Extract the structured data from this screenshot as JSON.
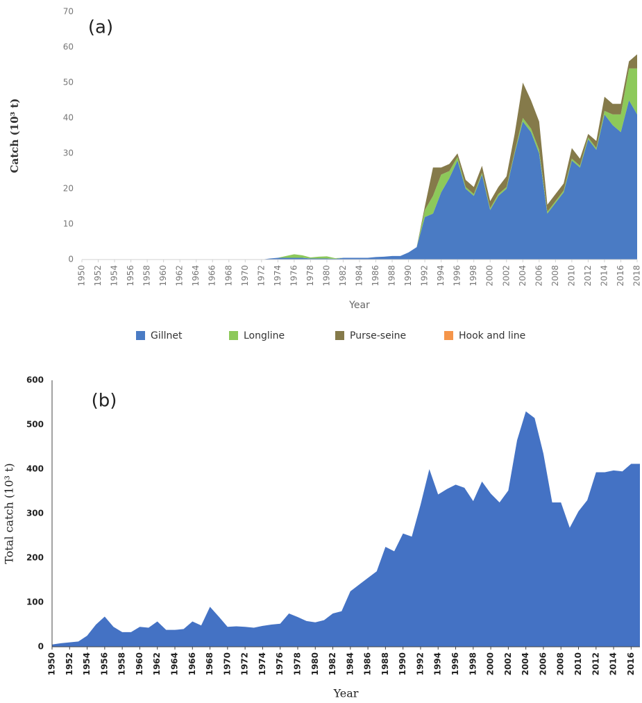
{
  "chart_data": [
    {
      "type": "area",
      "stacked": true,
      "annotation": "(a)",
      "y_label": "Catch (10³ t)",
      "x_label": "Year",
      "legend": "bottom",
      "x": [
        1950,
        1951,
        1952,
        1953,
        1954,
        1955,
        1956,
        1957,
        1958,
        1959,
        1960,
        1961,
        1962,
        1963,
        1964,
        1965,
        1966,
        1967,
        1968,
        1969,
        1970,
        1971,
        1972,
        1973,
        1974,
        1975,
        1976,
        1977,
        1978,
        1979,
        1980,
        1981,
        1982,
        1983,
        1984,
        1985,
        1986,
        1987,
        1988,
        1989,
        1990,
        1991,
        1992,
        1993,
        1994,
        1995,
        1996,
        1997,
        1998,
        1999,
        2000,
        2001,
        2002,
        2003,
        2004,
        2005,
        2006,
        2007,
        2008,
        2009,
        2010,
        2011,
        2012,
        2013,
        2014,
        2015,
        2016,
        2017,
        2018
      ],
      "series": [
        {
          "name": "Gillnet",
          "color": "#4a7bc4",
          "values": [
            0,
            0,
            0,
            0,
            0,
            0,
            0,
            0,
            0,
            0,
            0,
            0,
            0,
            0,
            0,
            0,
            0,
            0,
            0,
            0,
            0,
            0,
            0,
            0.3,
            0.5,
            0.5,
            0.5,
            0.5,
            0.3,
            0.3,
            0.3,
            0.2,
            0.5,
            0.5,
            0.5,
            0.5,
            0.7,
            0.8,
            1,
            1,
            2,
            3.5,
            12,
            13,
            19,
            23,
            28,
            20,
            18,
            24,
            14,
            18,
            20,
            30,
            39,
            36,
            30,
            13,
            16,
            19,
            28,
            26,
            34,
            31,
            41,
            38,
            36,
            45,
            41
          ]
        },
        {
          "name": "Longline",
          "color": "#8dc95a",
          "values": [
            0,
            0,
            0,
            0,
            0,
            0,
            0,
            0,
            0,
            0,
            0,
            0,
            0,
            0,
            0,
            0,
            0,
            0,
            0,
            0,
            0,
            0,
            0,
            0,
            0,
            0.5,
            1,
            0.7,
            0.3,
            0.5,
            0.6,
            0.2,
            0,
            0,
            0,
            0,
            0,
            0,
            0,
            0,
            0,
            0,
            2,
            5,
            5,
            2,
            1,
            0.5,
            0.5,
            0.5,
            0.5,
            0.5,
            0.5,
            0.5,
            1,
            1,
            1,
            0.5,
            0.5,
            0.5,
            0.5,
            0.5,
            0.5,
            0.5,
            1,
            3,
            5,
            9,
            13
          ]
        },
        {
          "name": "Purse-seine",
          "color": "#857a4a",
          "values": [
            0,
            0,
            0,
            0,
            0,
            0,
            0,
            0,
            0,
            0,
            0,
            0,
            0,
            0,
            0,
            0,
            0,
            0,
            0,
            0,
            0,
            0,
            0,
            0,
            0,
            0,
            0,
            0,
            0,
            0,
            0,
            0,
            0,
            0,
            0,
            0,
            0,
            0,
            0,
            0,
            0,
            0,
            1,
            8,
            2,
            2,
            1,
            2,
            2,
            2,
            2,
            2,
            3,
            5,
            10,
            8,
            8,
            2,
            2,
            2,
            3,
            2,
            1,
            2,
            4,
            3,
            3,
            2,
            4
          ]
        },
        {
          "name": "Hook and line",
          "color": "#f5954a",
          "values": [
            0,
            0,
            0,
            0,
            0,
            0,
            0,
            0,
            0,
            0,
            0,
            0,
            0,
            0,
            0,
            0,
            0,
            0,
            0,
            0,
            0,
            0,
            0,
            0,
            0,
            0,
            0,
            0,
            0,
            0,
            0,
            0,
            0,
            0,
            0,
            0,
            0,
            0,
            0,
            0,
            0,
            0,
            0,
            0,
            0,
            0,
            0,
            0,
            0,
            0,
            0,
            0,
            0,
            0,
            0,
            0,
            0,
            0,
            0,
            0,
            0,
            0,
            0,
            0,
            0,
            0,
            0,
            0,
            0
          ]
        }
      ],
      "xlim": [
        1950,
        2018
      ],
      "xticks": [
        1950,
        1952,
        1954,
        1956,
        1958,
        1960,
        1962,
        1964,
        1966,
        1968,
        1970,
        1972,
        1974,
        1976,
        1978,
        1980,
        1982,
        1984,
        1986,
        1988,
        1990,
        1992,
        1994,
        1996,
        1998,
        2000,
        2002,
        2004,
        2006,
        2008,
        2010,
        2012,
        2014,
        2016,
        2018
      ],
      "ylim": [
        0,
        70
      ],
      "yticks": [
        0,
        10,
        20,
        30,
        40,
        50,
        60,
        70
      ]
    },
    {
      "type": "area",
      "annotation": "(b)",
      "y_label": "Total catch (10³ t)",
      "x_label": "Year",
      "color": "#4472c4",
      "x": [
        1950,
        1951,
        1952,
        1953,
        1954,
        1955,
        1956,
        1957,
        1958,
        1959,
        1960,
        1961,
        1962,
        1963,
        1964,
        1965,
        1966,
        1967,
        1968,
        1969,
        1970,
        1971,
        1972,
        1973,
        1974,
        1975,
        1976,
        1977,
        1978,
        1979,
        1980,
        1981,
        1982,
        1983,
        1984,
        1985,
        1986,
        1987,
        1988,
        1989,
        1990,
        1991,
        1992,
        1993,
        1994,
        1995,
        1996,
        1997,
        1998,
        1999,
        2000,
        2001,
        2002,
        2003,
        2004,
        2005,
        2006,
        2007,
        2008,
        2009,
        2010,
        2011,
        2012,
        2013,
        2014,
        2015,
        2016,
        2017
      ],
      "values": [
        5,
        8,
        10,
        12,
        25,
        50,
        68,
        45,
        33,
        33,
        45,
        43,
        57,
        38,
        38,
        40,
        57,
        48,
        90,
        68,
        45,
        46,
        45,
        43,
        47,
        50,
        52,
        75,
        67,
        58,
        55,
        60,
        75,
        80,
        125,
        140,
        155,
        170,
        225,
        215,
        255,
        248,
        320,
        400,
        343,
        355,
        365,
        358,
        328,
        372,
        345,
        325,
        352,
        465,
        530,
        515,
        435,
        325,
        325,
        268,
        305,
        330,
        393,
        393,
        397,
        395,
        412,
        412
      ],
      "xlim": [
        1950,
        2017
      ],
      "xticks": [
        1950,
        1952,
        1954,
        1956,
        1958,
        1960,
        1962,
        1964,
        1966,
        1968,
        1970,
        1972,
        1974,
        1976,
        1978,
        1980,
        1982,
        1984,
        1986,
        1988,
        1990,
        1992,
        1994,
        1996,
        1998,
        2000,
        2002,
        2004,
        2006,
        2008,
        2010,
        2012,
        2014,
        2016
      ],
      "ylim": [
        0,
        600
      ],
      "yticks": [
        0,
        100,
        200,
        300,
        400,
        500,
        600
      ]
    }
  ]
}
